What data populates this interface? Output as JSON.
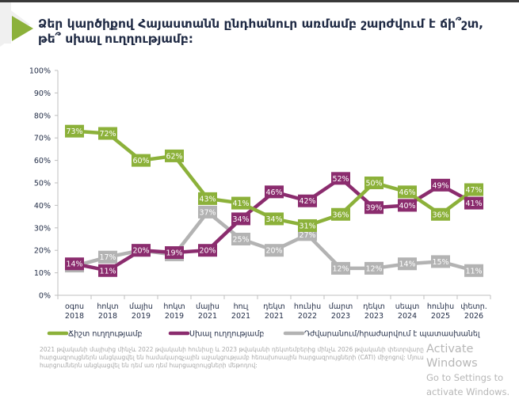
{
  "title": "Ձեր կարծիքով Հայաստանն ընդհանուր առմամբ շարժվում է ճի՞շտ, թե՞ սխալ ուղղությամբ:",
  "footnote": "2021 թվականի մայիսից մինչև 2022 թվականի հունիսը և 2023 թվականի դեկտեմբերից մինչև 2026 թվականի փետրվարը հարցազրույցներն անցկացվել են համակարգչային աջակցությամբ հեռախոսային հարցազրույցների (CATI) միջոցով: Մյուս հարցումներն անցկացվել են դեմ առ դեմ հարցազրույցների մեթոդով:",
  "watermark": {
    "line1": "Activate Windows",
    "line2": "Go to Settings to activate Windows."
  },
  "colors": {
    "accent": "#8cb13a",
    "right": "#8cb13a",
    "wrong": "#8b2c6e",
    "dk": "#b3b3b3",
    "axis": "#bfbfbf",
    "text": "#1f2a44"
  },
  "chart_data": {
    "type": "line",
    "title": "Ձեր կարծիքով Հայաստանն ընդհանուր առմամբ շարժվում է ճի՞շտ, թե՞ սխալ ուղղությամբ:",
    "xlabel": "",
    "ylabel": "",
    "ylim": [
      0,
      100
    ],
    "yticks": [
      "0%",
      "10%",
      "20%",
      "30%",
      "40%",
      "50%",
      "60%",
      "70%",
      "80%",
      "90%",
      "100%"
    ],
    "grid": false,
    "legend_position": "bottom",
    "categories": [
      [
        "օգոս",
        "2018"
      ],
      [
        "հոկտ",
        "2018"
      ],
      [
        "մայիս",
        "2019"
      ],
      [
        "հոկտ",
        "2019"
      ],
      [
        "մայիս",
        "2021"
      ],
      [
        "հուլ",
        "2021"
      ],
      [
        "դեկտ",
        "2021"
      ],
      [
        "հունիս",
        "2022"
      ],
      [
        "մարտ",
        "2023"
      ],
      [
        "դեկտ",
        "2023"
      ],
      [
        "սեպտ",
        "2024"
      ],
      [
        "հունիս",
        "2025"
      ],
      [
        "փետր.",
        "2026"
      ]
    ],
    "series": [
      {
        "name": "Ճիշտ ուղղությամբ",
        "color": "#8cb13a",
        "values": [
          73,
          72,
          60,
          62,
          43,
          41,
          34,
          31,
          36,
          50,
          46,
          36,
          47
        ]
      },
      {
        "name": "Սխալ ուղղությամբ",
        "color": "#8b2c6e",
        "values": [
          14,
          11,
          20,
          19,
          20,
          34,
          46,
          42,
          52,
          39,
          40,
          49,
          41
        ]
      },
      {
        "name": "Դժվարանում/հրաժարվում է պատասխանել",
        "color": "#b3b3b3",
        "values": [
          13,
          17,
          20,
          18,
          37,
          25,
          20,
          27,
          12,
          12,
          14,
          15,
          11
        ]
      }
    ]
  }
}
